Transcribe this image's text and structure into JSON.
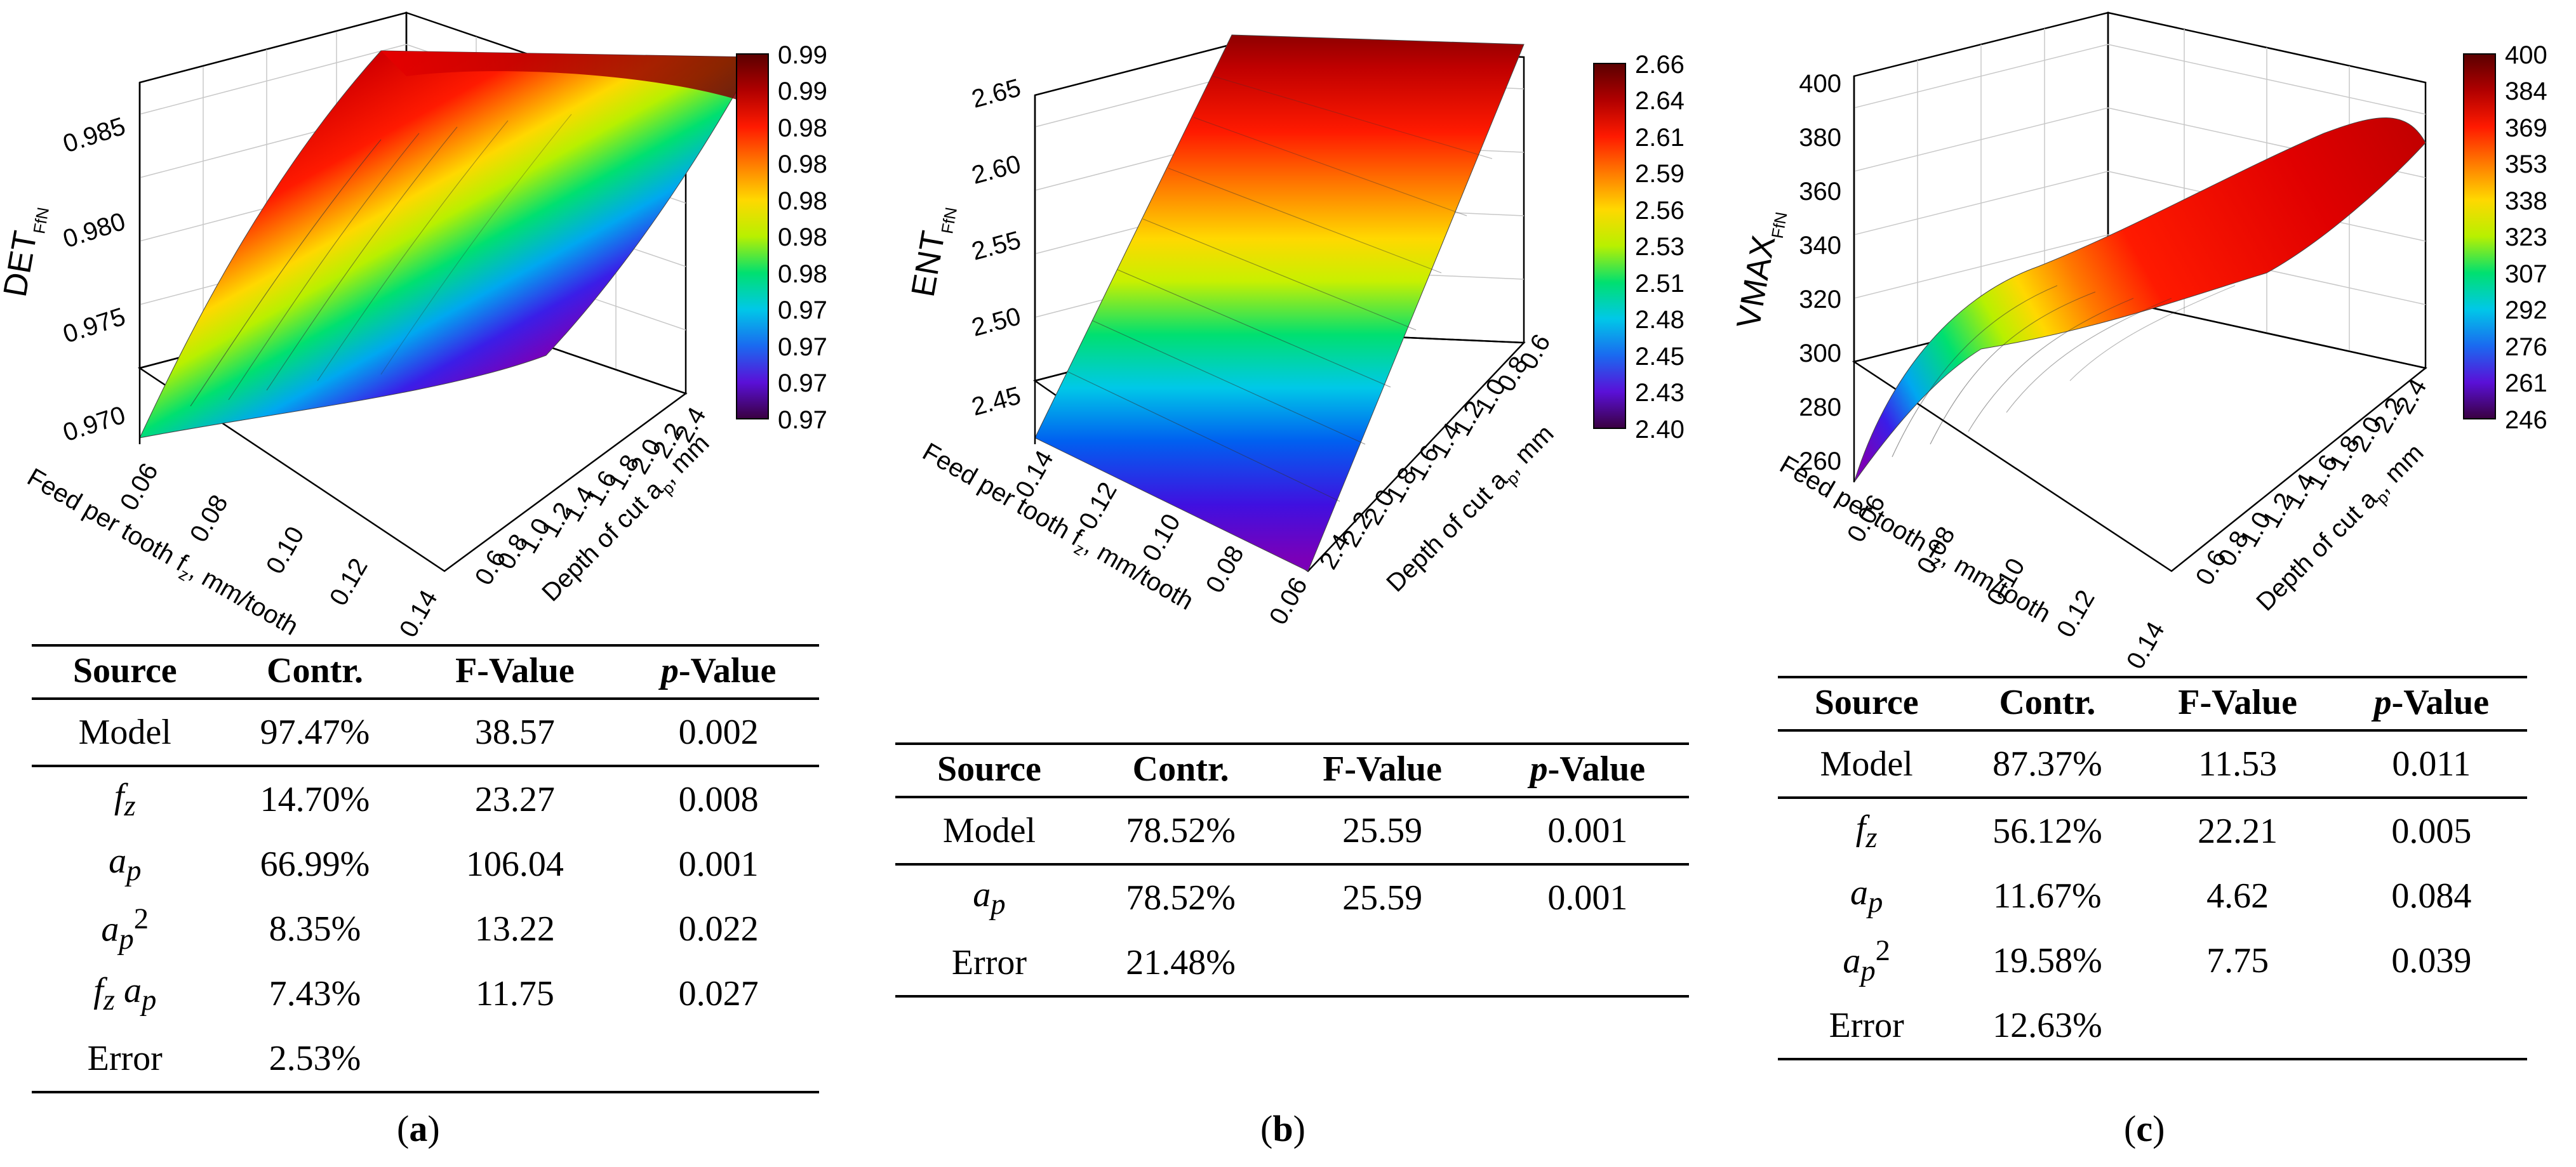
{
  "panels": [
    {
      "id": "a",
      "caption_letter": "a",
      "chart_data": {
        "type": "surface3d",
        "z_label_main": "DET",
        "z_label_sub": "FfN",
        "x_label": "Feed per tooth f",
        "x_label_sub": "z",
        "x_label_unit": ", mm/tooth",
        "y_label": "Depth of cut a",
        "y_label_sub": "p",
        "y_label_unit": ", mm",
        "x_ticks": [
          "0.06",
          "0.08",
          "0.10",
          "0.12",
          "0.14"
        ],
        "y_ticks": [
          "0.6",
          "0.8",
          "1.0",
          "1.2",
          "1.4",
          "1.6",
          "1.8",
          "2.0",
          "2.2",
          "2.4"
        ],
        "z_ticks": [
          "0.970",
          "0.975",
          "0.980",
          "0.985"
        ],
        "z_range": [
          0.968,
          0.99
        ],
        "colorbar_ticks": [
          "0.99",
          "0.99",
          "0.98",
          "0.98",
          "0.98",
          "0.98",
          "0.98",
          "0.97",
          "0.97",
          "0.97",
          "0.97"
        ]
      },
      "table": {
        "headers": [
          "Source",
          "Contr.",
          "F-Value",
          "p",
          "-Value"
        ],
        "rows": [
          {
            "source": "Model",
            "contr": "97.47%",
            "f": "38.57",
            "p": "0.002"
          },
          {
            "source": "fz",
            "contr": "14.70%",
            "f": "23.27",
            "p": "0.008"
          },
          {
            "source": "ap",
            "contr": "66.99%",
            "f": "106.04",
            "p": "0.001"
          },
          {
            "source": "ap2",
            "contr": "8.35%",
            "f": "13.22",
            "p": "0.022"
          },
          {
            "source": "fz ap",
            "contr": "7.43%",
            "f": "11.75",
            "p": "0.027"
          },
          {
            "source": "Error",
            "contr": "2.53%",
            "f": "",
            "p": ""
          }
        ]
      }
    },
    {
      "id": "b",
      "caption_letter": "b",
      "chart_data": {
        "type": "surface3d",
        "z_label_main": "ENT",
        "z_label_sub": "FfN",
        "x_label": "Feed per tooth f",
        "x_label_sub": "z",
        "x_label_unit": ", mm/tooth",
        "y_label": "Depth of cut a",
        "y_label_sub": "p",
        "y_label_unit": ", mm",
        "x_ticks": [
          "0.14",
          "0.12",
          "0.10",
          "0.08",
          "0.06"
        ],
        "y_ticks": [
          "2.4",
          "2.2",
          "2.0",
          "1.8",
          "1.6",
          "1.4",
          "1.2",
          "1.0",
          "0.8",
          "0.6"
        ],
        "z_ticks": [
          "2.45",
          "2.50",
          "2.55",
          "2.60",
          "2.65"
        ],
        "z_range": [
          2.4,
          2.66
        ],
        "colorbar_ticks": [
          "2.66",
          "2.64",
          "2.61",
          "2.59",
          "2.56",
          "2.53",
          "2.51",
          "2.48",
          "2.45",
          "2.43",
          "2.40"
        ]
      },
      "table": {
        "headers": [
          "Source",
          "Contr.",
          "F-Value",
          "p",
          "-Value"
        ],
        "rows": [
          {
            "source": "Model",
            "contr": "78.52%",
            "f": "25.59",
            "p": "0.001"
          },
          {
            "source": "ap",
            "contr": "78.52%",
            "f": "25.59",
            "p": "0.001"
          },
          {
            "source": "Error",
            "contr": "21.48%",
            "f": "",
            "p": ""
          }
        ]
      }
    },
    {
      "id": "c",
      "caption_letter": "c",
      "chart_data": {
        "type": "surface3d",
        "z_label_main": "VMAX",
        "z_label_sub": "FfN",
        "x_label": "Feed per tooth f",
        "x_label_sub": "z",
        "x_label_unit": ", mm/tooth",
        "y_label": "Depth of cut a",
        "y_label_sub": "p",
        "y_label_unit": ", mm",
        "x_ticks": [
          "0.06",
          "0.08",
          "0.10",
          "0.12",
          "0.14"
        ],
        "y_ticks": [
          "0.6",
          "0.8",
          "1.0",
          "1.2",
          "1.4",
          "1.6",
          "1.8",
          "2.0",
          "2.2",
          "2.4"
        ],
        "z_ticks": [
          "260",
          "280",
          "300",
          "320",
          "340",
          "360",
          "380",
          "400"
        ],
        "z_range": [
          246,
          400
        ],
        "colorbar_ticks": [
          "400",
          "384",
          "369",
          "353",
          "338",
          "323",
          "307",
          "292",
          "276",
          "261",
          "246"
        ]
      },
      "table": {
        "headers": [
          "Source",
          "Contr.",
          "F-Value",
          "p",
          "-Value"
        ],
        "rows": [
          {
            "source": "Model",
            "contr": "87.37%",
            "f": "11.53",
            "p": "0.011"
          },
          {
            "source": "fz",
            "contr": "56.12%",
            "f": "22.21",
            "p": "0.005"
          },
          {
            "source": "ap",
            "contr": "11.67%",
            "f": "4.62",
            "p": "0.084"
          },
          {
            "source": "ap2",
            "contr": "19.58%",
            "f": "7.75",
            "p": "0.039"
          },
          {
            "source": "Error",
            "contr": "12.63%",
            "f": "",
            "p": ""
          }
        ]
      }
    }
  ]
}
